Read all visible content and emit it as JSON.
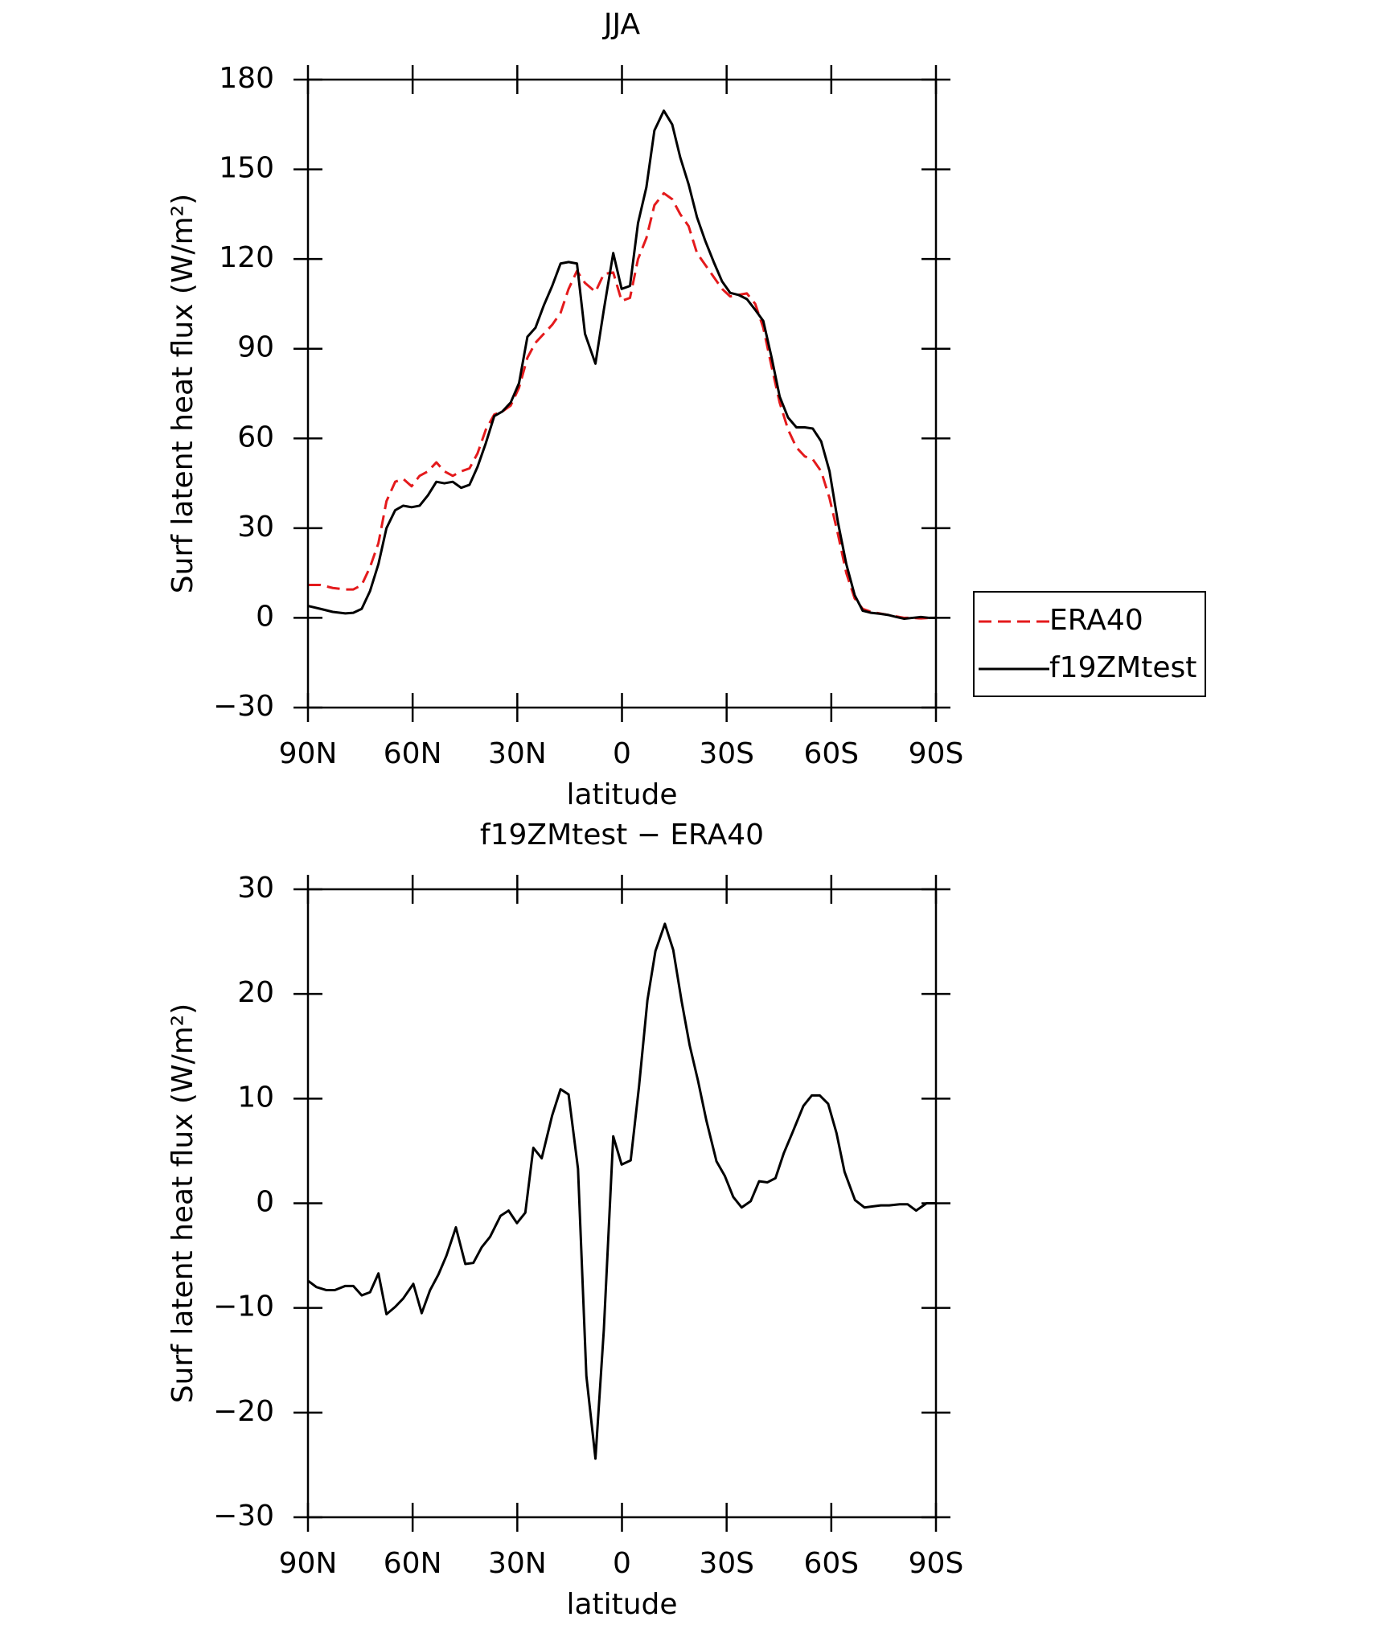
{
  "chart_data": [
    {
      "type": "line",
      "title": "JJA",
      "xlabel": "latitude",
      "ylabel": "Surf latent heat flux (W/m²)",
      "x": [
        90,
        86.4,
        82.9,
        79.3,
        77,
        74.6,
        72.2,
        69.8,
        67.5,
        65,
        62.7,
        60.3,
        58,
        55.6,
        53.2,
        50.9,
        48.5,
        46.1,
        43.7,
        41.4,
        39,
        36.6,
        34.3,
        31.9,
        29.5,
        27.1,
        24.8,
        22.4,
        20,
        17.6,
        15.3,
        12.9,
        10.6,
        7.6,
        5.2,
        2.5,
        0.1,
        -2.3,
        -4.6,
        -7,
        -9.3,
        -12,
        -14.4,
        -16.7,
        -19.1,
        -21.5,
        -23.9,
        -26.3,
        -28.7,
        -31,
        -33.4,
        -35.8,
        -38.2,
        -40.5,
        -42.9,
        -45.2,
        -47.6,
        -50,
        -52.4,
        -54.7,
        -57.1,
        -59.5,
        -61.9,
        -64.3,
        -66.7,
        -69,
        -71.4,
        -73.8,
        -76.2,
        -78.6,
        -80.9,
        -83.3,
        -85.7,
        -88.1,
        -90
      ],
      "series": [
        {
          "name": "ERA40",
          "color": "#e41a1c",
          "linestyle": "dashed",
          "values": [
            11,
            11,
            10,
            9.5,
            9.5,
            11,
            17,
            25,
            39,
            45.5,
            46.5,
            44,
            47.5,
            49,
            52,
            49,
            47.5,
            49,
            50,
            55,
            63,
            68,
            69,
            71,
            77,
            87,
            92,
            95,
            98,
            102,
            110,
            116,
            112,
            109,
            115,
            115.5,
            106,
            107,
            120,
            127,
            138,
            142,
            140,
            135,
            131,
            122,
            118,
            114,
            110,
            107.5,
            108,
            108.5,
            105,
            97,
            84,
            72,
            63,
            57,
            54,
            53,
            49,
            40,
            28,
            15,
            6.5,
            3,
            2,
            1.5,
            1,
            0.5,
            0,
            0,
            -0.2,
            0,
            0
          ]
        },
        {
          "name": "f19ZMtest",
          "color": "#000000",
          "linestyle": "solid",
          "values": [
            4,
            3,
            2,
            1.5,
            1.7,
            3,
            9,
            18,
            30,
            36,
            37.5,
            37,
            37.5,
            41,
            45.5,
            45,
            45.5,
            43.5,
            44.5,
            50.5,
            58.5,
            67.5,
            69,
            72,
            78.5,
            94,
            97,
            104.5,
            111,
            118.5,
            119,
            118.5,
            95,
            85,
            103,
            122,
            110,
            111,
            132,
            144,
            163,
            169.6,
            165,
            154,
            145,
            134,
            126,
            119,
            112.5,
            108.7,
            108,
            106.6,
            103,
            99.3,
            87,
            74,
            67,
            63.7,
            63.7,
            63.3,
            59,
            49,
            32,
            18,
            7.6,
            2.4,
            1.7,
            1.4,
            1,
            0.3,
            -0.3,
            0,
            0.3,
            0,
            0
          ]
        }
      ],
      "xlim": [
        90,
        -90
      ],
      "xticks": [
        {
          "value": 90,
          "label": "90N"
        },
        {
          "value": 60,
          "label": "60N"
        },
        {
          "value": 30,
          "label": "30N"
        },
        0,
        {
          "value": -30,
          "label": "30S"
        },
        {
          "value": -60,
          "label": "60S"
        },
        {
          "value": -90,
          "label": "90S"
        }
      ],
      "ylim": [
        -30,
        180
      ],
      "yticks": [
        {
          "value": -30,
          "label": "−30"
        },
        0,
        30,
        60,
        90,
        120,
        150,
        180
      ],
      "legend": "outside-right"
    },
    {
      "type": "line",
      "title": "f19ZMtest − ERA40",
      "xlabel": "latitude",
      "ylabel": "Surf latent heat flux (W/m²)",
      "x": [
        90,
        87.6,
        84.7,
        82.3,
        79.3,
        77,
        74.6,
        72.2,
        69.8,
        67.5,
        65,
        62.7,
        59.8,
        57.4,
        55,
        52.6,
        50.3,
        47.6,
        44.9,
        42.6,
        40.2,
        37.8,
        34.8,
        32.5,
        30.1,
        27.7,
        25.4,
        23,
        20,
        17.6,
        15.3,
        12.6,
        10.2,
        7.6,
        5.2,
        2.5,
        0.1,
        -2.5,
        -4.9,
        -7.3,
        -9.6,
        -12.3,
        -14.7,
        -17.1,
        -19.4,
        -21.8,
        -24.2,
        -27.1,
        -29.5,
        -31.9,
        -34.3,
        -36.9,
        -39.3,
        -41.7,
        -44,
        -46.4,
        -48.8,
        -52,
        -54.4,
        -56.7,
        -59.1,
        -61.5,
        -63.8,
        -66.8,
        -69.5,
        -71.9,
        -74.2,
        -76.6,
        -79.6,
        -81.9,
        -84.3,
        -87.3,
        -90
      ],
      "values": [
        -7.4,
        -8,
        -8.3,
        -8.3,
        -7.9,
        -7.9,
        -8.8,
        -8.5,
        -6.7,
        -10.6,
        -9.9,
        -9.1,
        -7.7,
        -10.5,
        -8.3,
        -6.8,
        -5,
        -2.3,
        -5.8,
        -5.7,
        -4.2,
        -3.2,
        -1.2,
        -0.7,
        -1.9,
        -0.9,
        5.3,
        4.3,
        8.4,
        10.9,
        10.4,
        3.3,
        -16.5,
        -24.4,
        -12.1,
        6.4,
        3.7,
        4.1,
        11.2,
        19.4,
        24.1,
        26.7,
        24.2,
        19.3,
        15.1,
        11.7,
        7.9,
        4,
        2.6,
        0.6,
        -0.4,
        0.2,
        2.1,
        2,
        2.4,
        4.8,
        6.7,
        9.3,
        10.3,
        10.3,
        9.5,
        6.7,
        3,
        0.3,
        -0.4,
        -0.3,
        -0.2,
        -0.2,
        -0.1,
        -0.1,
        -0.7,
        0,
        0
      ],
      "color": "#000000",
      "xlim": [
        90,
        -90
      ],
      "xticks": [
        {
          "value": 90,
          "label": "90N"
        },
        {
          "value": 60,
          "label": "60N"
        },
        {
          "value": 30,
          "label": "30N"
        },
        0,
        {
          "value": -30,
          "label": "30S"
        },
        {
          "value": -60,
          "label": "60S"
        },
        {
          "value": -90,
          "label": "90S"
        }
      ],
      "ylim": [
        -30,
        30
      ],
      "yticks": [
        {
          "value": -30,
          "label": "−30"
        },
        {
          "value": -20,
          "label": "−20"
        },
        {
          "value": -10,
          "label": "−10"
        },
        0,
        10,
        20,
        30
      ]
    }
  ]
}
